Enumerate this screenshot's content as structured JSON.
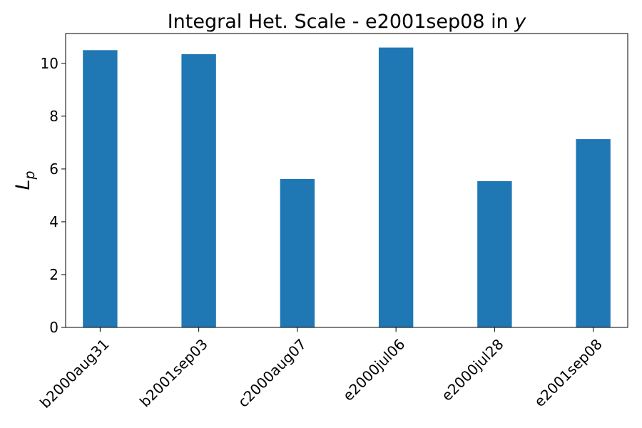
{
  "chart_data": {
    "type": "bar",
    "title": "Integral Het. Scale - e2001sep08 in ",
    "title_var": "y",
    "ylabel_main": "L",
    "ylabel_sub": "p",
    "categories": [
      "b2000aug31",
      "b2001sep03",
      "c2000aug07",
      "e2000jul06",
      "e2000jul28",
      "e2001sep08"
    ],
    "values": [
      10.5,
      10.35,
      5.62,
      10.6,
      5.54,
      7.13
    ],
    "ylim": [
      0,
      11.13
    ],
    "yticks": [
      0,
      2,
      4,
      6,
      8,
      10
    ],
    "bar_color": "#1f77b4",
    "grid": false,
    "legend": false
  }
}
